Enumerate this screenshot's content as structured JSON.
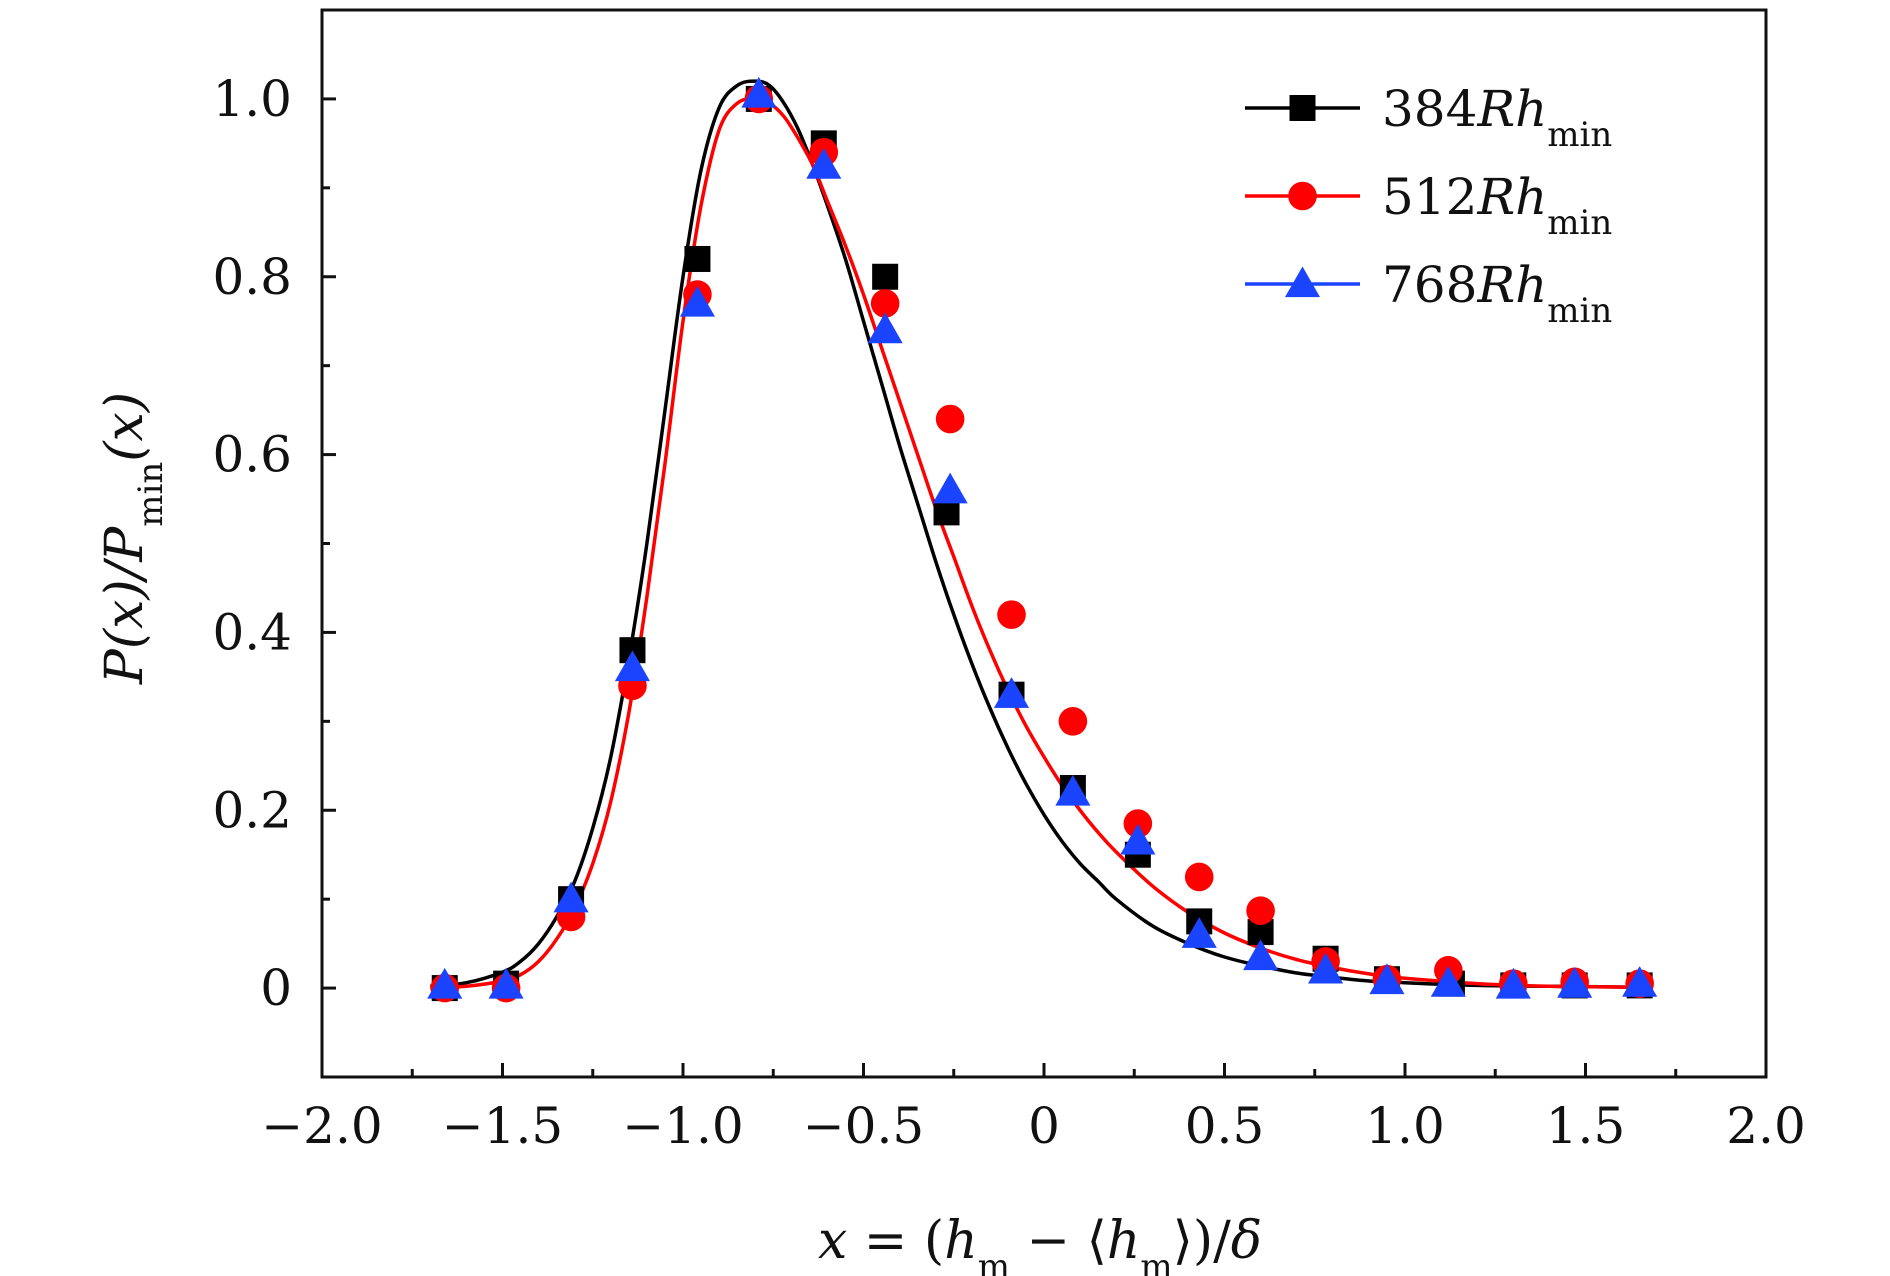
{
  "chart_data": {
    "type": "line",
    "xlabel": "x = (h_m − ⟨h_m⟩)/δ",
    "ylabel": "P(x)/P_min(x)",
    "xlim": [
      -2.0,
      2.0
    ],
    "ylim": [
      -0.1,
      1.1
    ],
    "xticks": [
      -2.0,
      -1.5,
      -1.0,
      -0.5,
      0,
      0.5,
      1.0,
      1.5,
      2.0
    ],
    "xtick_labels": [
      "−2.0",
      "−1.5",
      "−1.0",
      "−0.5",
      "0",
      "0.5",
      "1.0",
      "1.5",
      "2.0"
    ],
    "yticks": [
      0,
      0.2,
      0.4,
      0.6,
      0.8,
      1.0
    ],
    "ytick_labels": [
      "0",
      "0.2",
      "0.4",
      "0.6",
      "0.8",
      "1.0"
    ],
    "legend_position": "top-right",
    "grid": false,
    "series": [
      {
        "name": "384Rh_min",
        "label_prefix": "384",
        "color": "#000000",
        "marker": "square",
        "x": [
          -1.66,
          -1.49,
          -1.31,
          -1.14,
          -0.96,
          -0.79,
          -0.61,
          -0.44,
          -0.27,
          -0.09,
          0.08,
          0.26,
          0.43,
          0.6,
          0.78,
          0.95,
          1.13,
          1.3,
          1.47,
          1.65
        ],
        "y": [
          0.0,
          0.005,
          0.1,
          0.38,
          0.82,
          1.0,
          0.95,
          0.8,
          0.535,
          0.33,
          0.225,
          0.15,
          0.075,
          0.063,
          0.033,
          0.01,
          0.005,
          0.003,
          0.003,
          0.003
        ],
        "fit_x": [
          -1.7,
          -1.6,
          -1.5,
          -1.45,
          -1.4,
          -1.35,
          -1.3,
          -1.25,
          -1.2,
          -1.15,
          -1.1,
          -1.05,
          -1.0,
          -0.95,
          -0.9,
          -0.85,
          -0.8,
          -0.76,
          -0.72,
          -0.68,
          -0.64,
          -0.6,
          -0.55,
          -0.5,
          -0.45,
          -0.4,
          -0.35,
          -0.3,
          -0.25,
          -0.2,
          -0.15,
          -0.1,
          -0.05,
          0.0,
          0.05,
          0.1,
          0.15,
          0.2,
          0.3,
          0.4,
          0.5,
          0.6,
          0.7,
          0.8,
          0.9,
          1.0,
          1.2,
          1.4,
          1.65
        ],
        "fit_y": [
          0.002,
          0.006,
          0.018,
          0.03,
          0.05,
          0.08,
          0.12,
          0.18,
          0.26,
          0.37,
          0.5,
          0.65,
          0.8,
          0.92,
          0.99,
          1.015,
          1.02,
          1.015,
          0.995,
          0.965,
          0.925,
          0.88,
          0.82,
          0.75,
          0.68,
          0.61,
          0.545,
          0.48,
          0.42,
          0.365,
          0.315,
          0.27,
          0.23,
          0.195,
          0.165,
          0.14,
          0.12,
          0.1,
          0.07,
          0.05,
          0.035,
          0.025,
          0.017,
          0.012,
          0.008,
          0.006,
          0.003,
          0.002,
          0.001
        ]
      },
      {
        "name": "512Rh_min",
        "label_prefix": "512",
        "color": "#ff0000",
        "marker": "circle",
        "x": [
          -1.66,
          -1.49,
          -1.31,
          -1.14,
          -0.96,
          -0.79,
          -0.61,
          -0.44,
          -0.26,
          -0.09,
          0.08,
          0.26,
          0.43,
          0.6,
          0.78,
          0.95,
          1.12,
          1.3,
          1.47,
          1.65
        ],
        "y": [
          0.0,
          0.0,
          0.08,
          0.34,
          0.78,
          1.0,
          0.94,
          0.77,
          0.64,
          0.42,
          0.3,
          0.185,
          0.125,
          0.087,
          0.03,
          0.01,
          0.02,
          0.005,
          0.007,
          0.005
        ],
        "fit_x": [
          -1.7,
          -1.6,
          -1.5,
          -1.45,
          -1.4,
          -1.35,
          -1.3,
          -1.25,
          -1.2,
          -1.15,
          -1.1,
          -1.05,
          -1.0,
          -0.95,
          -0.9,
          -0.85,
          -0.8,
          -0.76,
          -0.72,
          -0.68,
          -0.64,
          -0.6,
          -0.55,
          -0.5,
          -0.45,
          -0.4,
          -0.35,
          -0.3,
          -0.25,
          -0.2,
          -0.15,
          -0.1,
          -0.05,
          0.0,
          0.05,
          0.1,
          0.15,
          0.2,
          0.3,
          0.4,
          0.5,
          0.6,
          0.7,
          0.8,
          0.9,
          1.0,
          1.2,
          1.4,
          1.65
        ],
        "fit_y": [
          0.0,
          0.002,
          0.008,
          0.015,
          0.03,
          0.055,
          0.09,
          0.14,
          0.21,
          0.31,
          0.44,
          0.59,
          0.75,
          0.88,
          0.965,
          0.995,
          1.0,
          0.995,
          0.98,
          0.955,
          0.925,
          0.885,
          0.835,
          0.78,
          0.72,
          0.66,
          0.6,
          0.54,
          0.485,
          0.43,
          0.38,
          0.335,
          0.295,
          0.26,
          0.228,
          0.2,
          0.175,
          0.153,
          0.115,
          0.085,
          0.062,
          0.045,
          0.032,
          0.023,
          0.016,
          0.011,
          0.005,
          0.002,
          0.001
        ]
      },
      {
        "name": "768Rh_min",
        "label_prefix": "768",
        "color": "#1a44ff",
        "marker": "triangle",
        "x": [
          -1.66,
          -1.49,
          -1.31,
          -1.14,
          -0.96,
          -0.79,
          -0.61,
          -0.44,
          -0.26,
          -0.09,
          0.08,
          0.26,
          0.43,
          0.6,
          0.78,
          0.95,
          1.12,
          1.3,
          1.47,
          1.65
        ],
        "y": [
          0.003,
          0.003,
          0.1,
          0.36,
          0.77,
          1.005,
          0.925,
          0.74,
          0.56,
          0.33,
          0.22,
          0.165,
          0.06,
          0.035,
          0.02,
          0.008,
          0.005,
          0.003,
          0.004,
          0.005
        ]
      }
    ]
  }
}
